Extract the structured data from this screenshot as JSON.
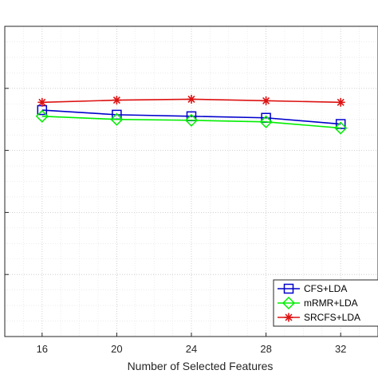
{
  "chart_data": {
    "type": "line",
    "title": "",
    "xlabel": "Number of Selected Features",
    "ylabel": "",
    "x": [
      16,
      20,
      24,
      28,
      32
    ],
    "xlim": [
      14,
      34
    ],
    "xticks": [
      "16",
      "20",
      "24",
      "28",
      "32"
    ],
    "ylim": [
      0,
      1
    ],
    "grid": true,
    "grid_minor": true,
    "legend_position": "bottom-right",
    "series": [
      {
        "name": "CFS+LDA",
        "values": [
          0.73,
          0.715,
          0.71,
          0.705,
          0.685
        ],
        "color": "#0000cc",
        "marker": "square"
      },
      {
        "name": "mRMR+LDA",
        "values": [
          0.71,
          0.7,
          0.697,
          0.692,
          0.672
        ],
        "color": "#00ee00",
        "marker": "diamond"
      },
      {
        "name": "SRCFS+LDA",
        "values": [
          0.755,
          0.762,
          0.765,
          0.76,
          0.755
        ],
        "color": "#dd1111",
        "marker": "asterisk"
      }
    ]
  }
}
